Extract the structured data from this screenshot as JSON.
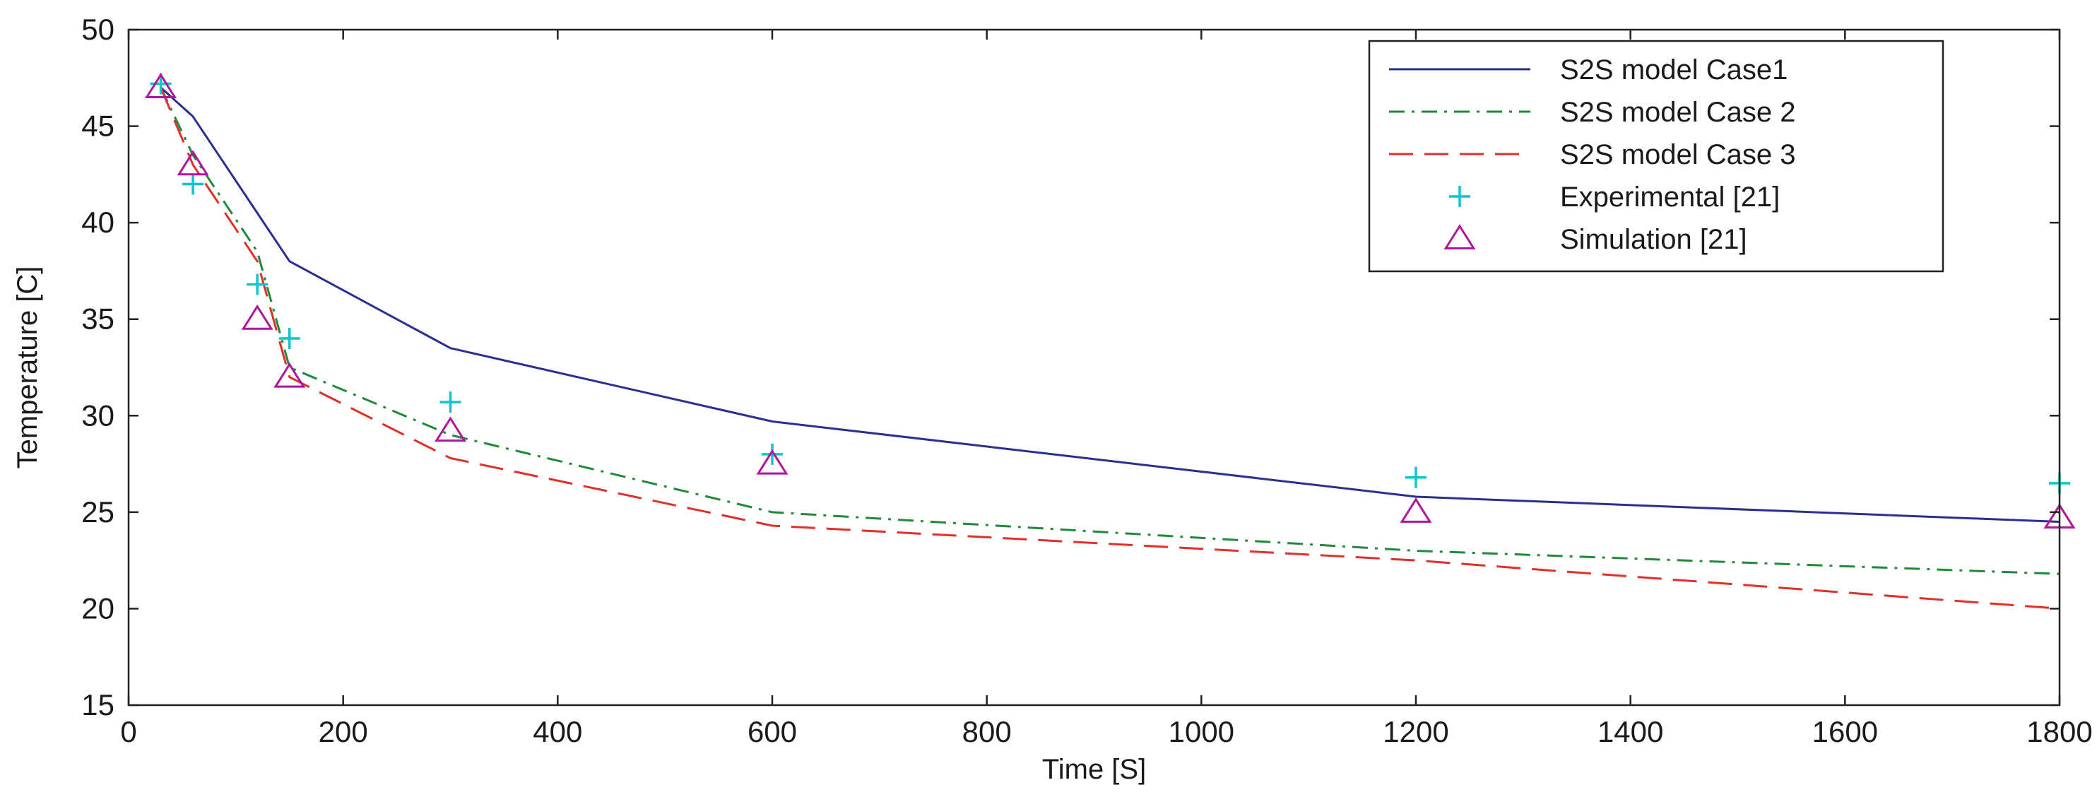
{
  "chart_data": {
    "type": "line",
    "title": "",
    "xlabel": "Time [S]",
    "ylabel": "Temperature [C]",
    "xlim": [
      0,
      1800
    ],
    "ylim": [
      15,
      50
    ],
    "xticks": [
      0,
      200,
      400,
      600,
      800,
      1000,
      1200,
      1400,
      1600,
      1800
    ],
    "yticks": [
      15,
      20,
      25,
      30,
      35,
      40,
      45,
      50
    ],
    "grid": false,
    "legend_position": "top-right",
    "series": [
      {
        "name": "S2S model Case1",
        "style": "solid",
        "color": "#2b2f8f",
        "x": [
          30,
          60,
          120,
          150,
          300,
          600,
          1200,
          1800
        ],
        "y": [
          47,
          45.5,
          40.5,
          38,
          33.5,
          29.7,
          25.8,
          24.5
        ]
      },
      {
        "name": "S2S model Case 2",
        "style": "dashdot",
        "color": "#1f8a3a",
        "x": [
          30,
          60,
          120,
          150,
          300,
          600,
          1200,
          1800
        ],
        "y": [
          47,
          43.5,
          38.5,
          32.5,
          29,
          25,
          23,
          21.8
        ]
      },
      {
        "name": "S2S model Case 3",
        "style": "dashed",
        "color": "#e0302a",
        "x": [
          30,
          60,
          120,
          150,
          300,
          600,
          1200,
          1800
        ],
        "y": [
          47,
          43,
          38,
          32,
          27.8,
          24.3,
          22.5,
          20
        ]
      },
      {
        "name": "Experimental [21]",
        "style": "marker-plus",
        "color": "#11c4cc",
        "x": [
          30,
          60,
          120,
          150,
          300,
          600,
          1200,
          1800
        ],
        "y": [
          47.2,
          42,
          36.8,
          34,
          30.7,
          28,
          26.8,
          26.5
        ]
      },
      {
        "name": "Simulation [21]",
        "style": "marker-triangle",
        "color": "#b0169a",
        "x": [
          30,
          60,
          120,
          150,
          300,
          600,
          1200,
          1800
        ],
        "y": [
          47,
          43,
          35,
          32,
          29.2,
          27.5,
          25,
          24.7
        ]
      }
    ]
  }
}
